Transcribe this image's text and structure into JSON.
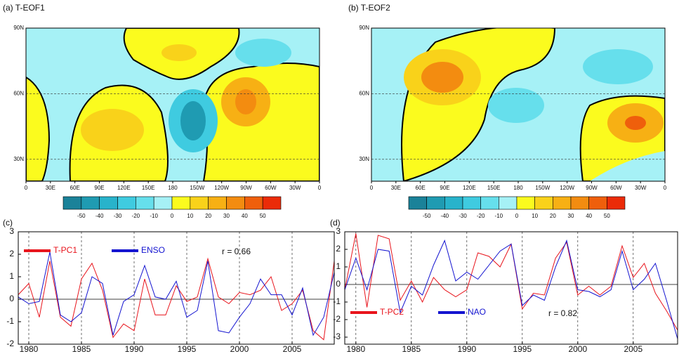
{
  "chart_data": [
    {
      "type": "map",
      "title": "(a) T-EOF1",
      "xlim": [
        0,
        360
      ],
      "ylim": [
        20,
        90
      ],
      "xticks": [
        0,
        {
          "value": 30,
          "label": "30E"
        },
        {
          "value": 60,
          "label": "60E"
        },
        {
          "value": 90,
          "label": "90E"
        },
        {
          "value": 120,
          "label": "120E"
        },
        {
          "value": 150,
          "label": "150E"
        },
        180,
        {
          "value": 210,
          "label": "150W"
        },
        {
          "value": 240,
          "label": "120W"
        },
        {
          "value": 270,
          "label": "90W"
        },
        {
          "value": 300,
          "label": "60W"
        },
        {
          "value": 330,
          "label": "30W"
        },
        {
          "value": 360,
          "label": "0"
        }
      ],
      "yticks": [
        {
          "value": 30,
          "label": "30N"
        },
        {
          "value": 60,
          "label": "60N"
        },
        {
          "value": 90,
          "label": "90N"
        }
      ],
      "colorbar": {
        "levels": [
          -50,
          -40,
          -30,
          -20,
          -10,
          0,
          10,
          20,
          30,
          40,
          50
        ],
        "colors": [
          "#1a8299",
          "#1f9bb2",
          "#28b3cb",
          "#3fcbe0",
          "#66dfec",
          "#a6f1f6",
          "#fbfb1e",
          "#f9d21a",
          "#f7b014",
          "#f38c10",
          "#ef5f0c",
          "#eb2b08"
        ]
      }
    },
    {
      "type": "map",
      "title": "(b) T-EOF2",
      "xlim": [
        0,
        360
      ],
      "ylim": [
        20,
        90
      ],
      "xticks": [
        0,
        {
          "value": 30,
          "label": "30E"
        },
        {
          "value": 60,
          "label": "60E"
        },
        {
          "value": 90,
          "label": "90E"
        },
        {
          "value": 120,
          "label": "120E"
        },
        {
          "value": 150,
          "label": "150E"
        },
        180,
        {
          "value": 210,
          "label": "150W"
        },
        {
          "value": 240,
          "label": "120W"
        },
        {
          "value": 270,
          "label": "90W"
        },
        {
          "value": 300,
          "label": "60W"
        },
        {
          "value": 330,
          "label": "30W"
        },
        {
          "value": 360,
          "label": "0"
        }
      ],
      "yticks": [
        {
          "value": 30,
          "label": "30N"
        },
        {
          "value": 60,
          "label": "60N"
        },
        {
          "value": 90,
          "label": "90N"
        }
      ],
      "colorbar": {
        "levels": [
          -50,
          -40,
          -30,
          -20,
          -10,
          0,
          10,
          20,
          30,
          40,
          50
        ],
        "colors": [
          "#1a8299",
          "#1f9bb2",
          "#28b3cb",
          "#3fcbe0",
          "#66dfec",
          "#a6f1f6",
          "#fbfb1e",
          "#f9d21a",
          "#f7b014",
          "#f38c10",
          "#ef5f0c",
          "#eb2b08"
        ]
      }
    },
    {
      "type": "line",
      "title": "(c)",
      "annotation": "r = 0.66",
      "legend": "upper left",
      "zero_line": 0,
      "xlim": [
        1979,
        2009
      ],
      "ylim": [
        -2,
        3
      ],
      "xticks": [
        1980,
        1985,
        1990,
        1995,
        2000,
        2005
      ],
      "yticks": [
        -2,
        -1,
        0,
        1,
        2,
        3
      ],
      "x": [
        1979,
        1980,
        1981,
        1982,
        1983,
        1984,
        1985,
        1986,
        1987,
        1988,
        1989,
        1990,
        1991,
        1992,
        1993,
        1994,
        1995,
        1996,
        1997,
        1998,
        1999,
        2000,
        2001,
        2002,
        2003,
        2004,
        2005,
        2006,
        2007,
        2008,
        2009
      ],
      "series": [
        {
          "name": "T-PC1",
          "color": "#e8141c",
          "values": [
            0.2,
            0.7,
            -0.8,
            1.7,
            -0.8,
            -1.2,
            0.9,
            1.6,
            0.4,
            -1.7,
            -1.1,
            -1.4,
            0.9,
            -0.7,
            -0.7,
            0.6,
            -0.1,
            0.1,
            1.8,
            0.1,
            -0.2,
            0.3,
            0.2,
            0.4,
            1.0,
            -0.5,
            -0.2,
            0.4,
            -1.4,
            -1.8,
            1.7
          ]
        },
        {
          "name": "ENSO",
          "color": "#1414d0",
          "values": [
            0.1,
            -0.2,
            -0.1,
            2.1,
            -0.7,
            -1.0,
            -0.6,
            1.0,
            0.7,
            -1.6,
            -0.1,
            0.2,
            1.5,
            0.1,
            0.0,
            0.8,
            -0.8,
            -0.5,
            1.7,
            -1.4,
            -1.5,
            -0.8,
            -0.2,
            0.9,
            0.2,
            0.2,
            -0.7,
            0.5,
            -1.6,
            -0.8,
            1.2
          ]
        }
      ]
    },
    {
      "type": "line",
      "title": "(d)",
      "annotation": "r = 0.82",
      "legend": "lower left",
      "zero_line": 0,
      "xlim": [
        1979,
        2009
      ],
      "ylim": [
        -3.4,
        3
      ],
      "xticks": [
        1980,
        1985,
        1990,
        1995,
        2000,
        2005
      ],
      "yticks": [
        -3,
        -2,
        -1,
        0,
        1,
        2,
        3
      ],
      "x": [
        1979,
        1980,
        1981,
        1982,
        1983,
        1984,
        1985,
        1986,
        1987,
        1988,
        1989,
        1990,
        1991,
        1992,
        1993,
        1994,
        1995,
        1996,
        1997,
        1998,
        1999,
        2000,
        2001,
        2002,
        2003,
        2004,
        2005,
        2006,
        2007,
        2008,
        2009
      ],
      "series": [
        {
          "name": "T-PC2",
          "color": "#e8141c",
          "values": [
            -0.3,
            2.9,
            -1.3,
            2.8,
            2.6,
            -0.9,
            0.2,
            -1.0,
            0.4,
            -0.3,
            -0.7,
            -0.3,
            1.8,
            1.6,
            1.0,
            2.3,
            -1.4,
            -0.5,
            -0.6,
            1.5,
            2.4,
            -0.6,
            -0.1,
            -0.6,
            -0.1,
            2.2,
            0.4,
            1.2,
            -0.5,
            -1.5,
            -2.6
          ]
        },
        {
          "name": "NAO",
          "color": "#1414d0",
          "values": [
            -0.3,
            1.5,
            -0.3,
            2.0,
            1.9,
            -1.6,
            -0.1,
            -0.6,
            1.1,
            2.5,
            0.2,
            0.7,
            0.3,
            1.1,
            1.9,
            2.3,
            -1.2,
            -0.6,
            -0.9,
            1.0,
            2.5,
            -0.3,
            -0.4,
            -0.7,
            -0.3,
            1.9,
            -0.3,
            0.3,
            1.2,
            -0.9,
            -3.1
          ]
        }
      ]
    }
  ]
}
